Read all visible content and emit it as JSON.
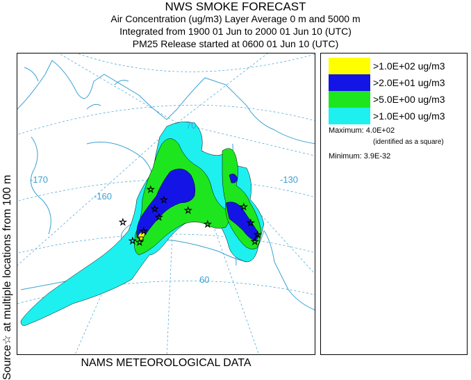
{
  "title": "NWS SMOKE FORECAST",
  "subtitle_lines": [
    "Air Concentration (ug/m3) Layer Average    0 m and  5000 m",
    "Integrated from 1900 01 Jun to 2000 01 Jun 10 (UTC)",
    "PM25 Release started at 0600 01 Jun 10 (UTC)"
  ],
  "side_label": "Source☆    at multiple locations    from   100 m",
  "footer": "NAMS METEOROLOGICAL DATA",
  "map": {
    "longitude_labels": [
      "-170",
      "-160",
      "-130"
    ],
    "latitude_labels": [
      "70",
      "60"
    ],
    "colors": {
      "land_outline": "#3aa0d4",
      "graticule": "#3aa0d4",
      "contour": "#000000"
    },
    "source_marker": "☆"
  },
  "legend": {
    "items": [
      {
        "label": ">1.0E+02 ug/m3",
        "color": "#ffff00"
      },
      {
        "label": ">2.0E+01 ug/m3",
        "color": "#1414e6"
      },
      {
        "label": ">5.0E+00 ug/m3",
        "color": "#1ee61e"
      },
      {
        "label": ">1.0E+00 ug/m3",
        "color": "#1ef0f0"
      }
    ],
    "maximum_label": "Maximum:",
    "maximum_value": "4.0E+02",
    "maximum_note": "(identified as a square)",
    "minimum_label": "Minimum:",
    "minimum_value": "3.9E-32"
  }
}
